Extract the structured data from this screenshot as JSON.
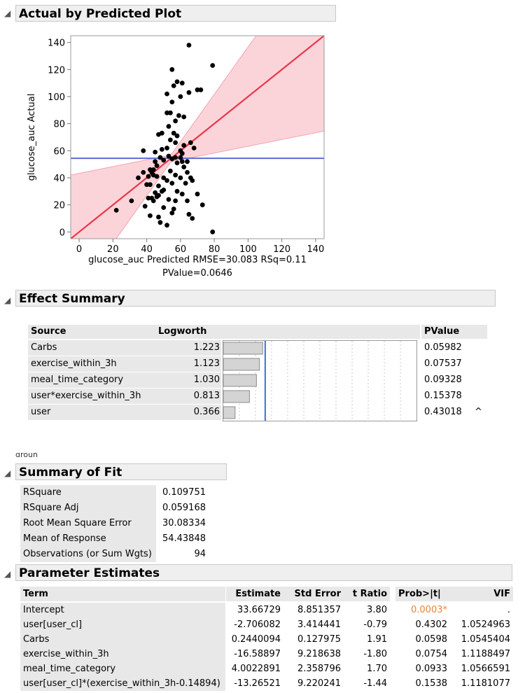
{
  "actual_by_predicted": {
    "title": "Actual by Predicted Plot",
    "xlabel_line1": "glucose_auc Predicted RMSE=30.083 RSq=0.11",
    "xlabel_line2": "PValue=0.0646",
    "ylabel": "glucose_auc Actual"
  },
  "chart_data": {
    "type": "scatter",
    "title": "Actual by Predicted Plot",
    "xlabel": "glucose_auc Predicted RMSE=30.083 RSq=0.11 PValue=0.0646",
    "ylabel": "glucose_auc Actual",
    "xlim": [
      -5,
      145
    ],
    "ylim": [
      -5,
      145
    ],
    "xticks": [
      0,
      20,
      40,
      60,
      80,
      100,
      120,
      140
    ],
    "yticks": [
      0,
      20,
      40,
      60,
      80,
      100,
      120,
      140
    ],
    "mean_line_y": 54.4,
    "fit_line": [
      [
        -5,
        -5
      ],
      [
        145,
        145
      ]
    ],
    "colors": {
      "fit": "#e8374a",
      "band": "#f9c6ce",
      "mean": "#5b6bd6",
      "point": "#000000"
    },
    "points": [
      [
        65,
        138
      ],
      [
        79,
        123
      ],
      [
        55,
        120
      ],
      [
        70,
        105
      ],
      [
        72,
        105
      ],
      [
        58,
        111
      ],
      [
        61,
        110
      ],
      [
        56,
        108
      ],
      [
        52,
        102
      ],
      [
        60,
        100
      ],
      [
        65,
        103
      ],
      [
        55,
        96
      ],
      [
        52,
        88
      ],
      [
        54,
        88
      ],
      [
        59,
        86
      ],
      [
        62,
        85
      ],
      [
        57,
        82
      ],
      [
        53,
        78
      ],
      [
        49,
        73
      ],
      [
        47,
        72
      ],
      [
        56,
        73
      ],
      [
        58,
        71
      ],
      [
        54,
        68
      ],
      [
        57,
        66
      ],
      [
        62,
        64
      ],
      [
        66,
        66
      ],
      [
        68,
        62
      ],
      [
        52,
        62
      ],
      [
        49,
        61
      ],
      [
        45,
        59
      ],
      [
        38,
        60
      ],
      [
        53,
        56
      ],
      [
        55,
        54
      ],
      [
        57,
        55
      ],
      [
        60,
        55
      ],
      [
        61,
        52
      ],
      [
        64,
        52
      ],
      [
        48,
        55
      ],
      [
        50,
        53
      ],
      [
        45,
        52
      ],
      [
        46,
        49
      ],
      [
        42,
        46
      ],
      [
        43,
        44
      ],
      [
        44,
        42
      ],
      [
        41,
        41
      ],
      [
        35,
        40
      ],
      [
        46,
        41
      ],
      [
        50,
        40
      ],
      [
        57,
        42
      ],
      [
        60,
        40
      ],
      [
        64,
        44
      ],
      [
        66,
        40
      ],
      [
        67,
        38
      ],
      [
        63,
        36
      ],
      [
        52,
        38
      ],
      [
        55,
        36
      ],
      [
        47,
        34
      ],
      [
        42,
        35
      ],
      [
        40,
        35
      ],
      [
        49,
        30
      ],
      [
        45,
        29
      ],
      [
        47,
        27
      ],
      [
        58,
        30
      ],
      [
        61,
        28
      ],
      [
        70,
        28
      ],
      [
        41,
        25
      ],
      [
        44,
        23
      ],
      [
        53,
        24
      ],
      [
        57,
        23
      ],
      [
        64,
        23
      ],
      [
        73,
        20
      ],
      [
        31,
        23
      ],
      [
        39,
        19
      ],
      [
        50,
        18
      ],
      [
        56,
        17
      ],
      [
        55,
        14
      ],
      [
        65,
        13
      ],
      [
        67,
        10
      ],
      [
        42,
        12
      ],
      [
        47,
        11
      ],
      [
        52,
        5
      ],
      [
        48,
        7
      ],
      [
        22,
        16
      ],
      [
        43,
        25
      ],
      [
        46,
        26
      ],
      [
        38,
        44
      ],
      [
        62,
        48
      ],
      [
        44,
        46
      ],
      [
        60,
        60
      ],
      [
        61,
        58
      ],
      [
        50,
        31
      ],
      [
        54,
        45
      ],
      [
        79,
        0
      ],
      [
        58,
        51
      ]
    ]
  },
  "effect_summary": {
    "title": "Effect Summary",
    "headers": {
      "source": "Source",
      "logworth": "Logworth",
      "pvalue": "PValue"
    },
    "rows": [
      {
        "source": "Carbs",
        "logworth": "1.223",
        "lw": 1.223,
        "pvalue": "0.05982",
        "mark": ""
      },
      {
        "source": "exercise_within_3h",
        "logworth": "1.123",
        "lw": 1.123,
        "pvalue": "0.07537",
        "mark": ""
      },
      {
        "source": "meal_time_category",
        "logworth": "1.030",
        "lw": 1.03,
        "pvalue": "0.09328",
        "mark": ""
      },
      {
        "source": "user*exercise_within_3h",
        "logworth": "0.813",
        "lw": 0.813,
        "pvalue": "0.15378",
        "mark": ""
      },
      {
        "source": "user",
        "logworth": "0.366",
        "lw": 0.366,
        "pvalue": "0.43018",
        "mark": "^"
      }
    ],
    "reference_logworth": 1.301
  },
  "cut_text": "groun",
  "summary_of_fit": {
    "title": "Summary of Fit",
    "rows": [
      {
        "label": "RSquare",
        "value": "0.109751"
      },
      {
        "label": "RSquare Adj",
        "value": "0.059168"
      },
      {
        "label": "Root Mean Square Error",
        "value": "30.08334"
      },
      {
        "label": "Mean of Response",
        "value": "54.43848"
      },
      {
        "label": "Observations (or Sum Wgts)",
        "value": "94"
      }
    ]
  },
  "parameter_estimates": {
    "title": "Parameter Estimates",
    "headers": {
      "term": "Term",
      "estimate": "Estimate",
      "stderr": "Std Error",
      "tratio": "t Ratio",
      "prob": "Prob>|t|",
      "vif": "VIF"
    },
    "significant_color": "#e8823a",
    "rows": [
      {
        "term": "Intercept",
        "estimate": "33.66729",
        "stderr": "8.851357",
        "tratio": "3.80",
        "prob": "0.0003*",
        "vif": ".",
        "sig": true
      },
      {
        "term": "user[user_cl]",
        "estimate": "-2.706082",
        "stderr": "3.414441",
        "tratio": "-0.79",
        "prob": "0.4302",
        "vif": "1.0524963",
        "sig": false
      },
      {
        "term": "Carbs",
        "estimate": "0.2440094",
        "stderr": "0.127975",
        "tratio": "1.91",
        "prob": "0.0598",
        "vif": "1.0545404",
        "sig": false
      },
      {
        "term": "exercise_within_3h",
        "estimate": "-16.58897",
        "stderr": "9.218638",
        "tratio": "-1.80",
        "prob": "0.0754",
        "vif": "1.1188497",
        "sig": false
      },
      {
        "term": "meal_time_category",
        "estimate": "4.0022891",
        "stderr": "2.358796",
        "tratio": "1.70",
        "prob": "0.0933",
        "vif": "1.0566591",
        "sig": false
      },
      {
        "term": "user[user_cl]*(exercise_within_3h-0.14894)",
        "estimate": "-13.26521",
        "stderr": "9.220241",
        "tratio": "-1.44",
        "prob": "0.1538",
        "vif": "1.1181077",
        "sig": false
      }
    ]
  }
}
